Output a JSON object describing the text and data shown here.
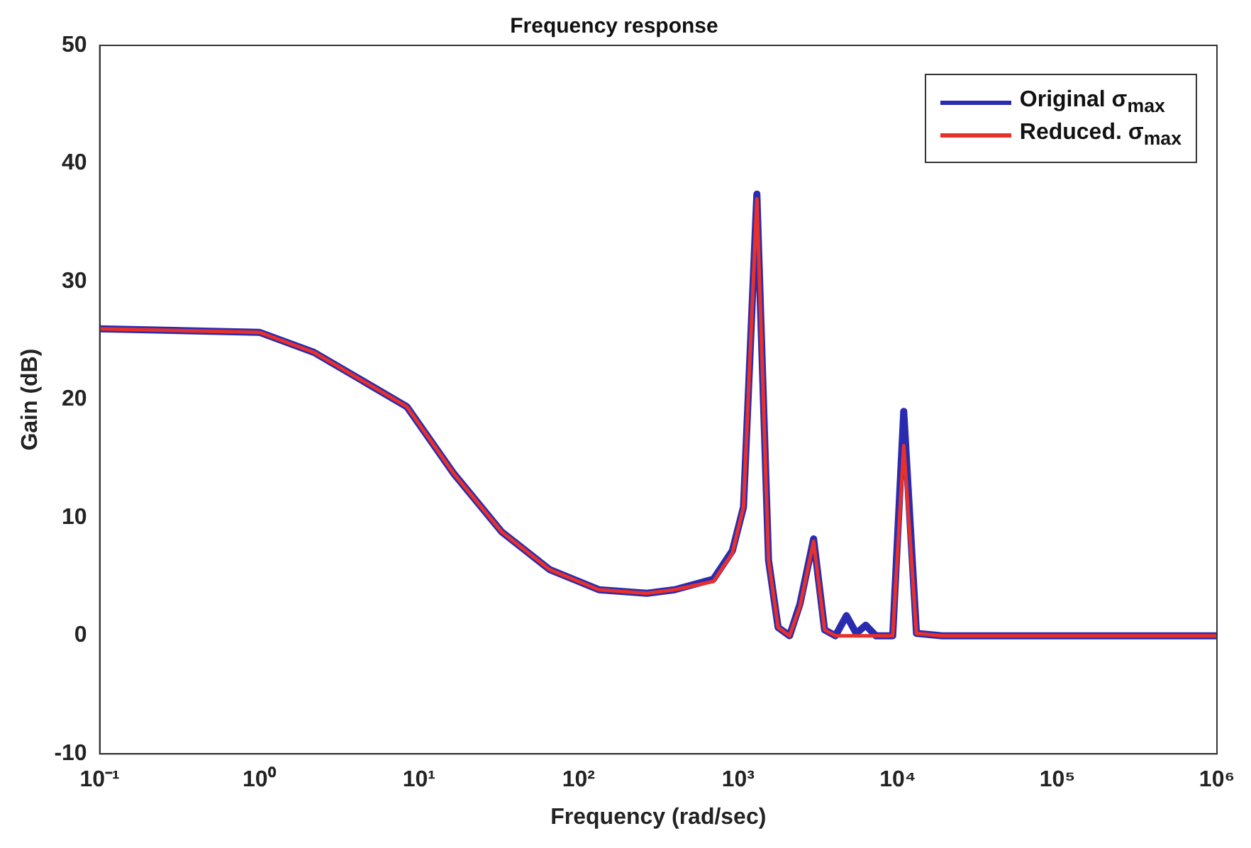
{
  "chart_data": {
    "type": "line",
    "title": "Frequency response",
    "xlabel": "Frequency (rad/sec)",
    "ylabel": "Gain (dB)",
    "x": [
      0.1,
      1,
      2.2,
      8.4,
      16.6,
      33,
      66,
      134,
      268,
      400,
      700,
      920,
      1080,
      1310,
      1550,
      1780,
      2100,
      2440,
      2970,
      3480,
      4070,
      4770,
      5500,
      6300,
      7300,
      9300,
      10900,
      13100,
      19000,
      100000,
      1000000
    ],
    "series": [
      {
        "name": "Original σ$_{max}$",
        "color": "#2b2bb0",
        "values": [
          26,
          25.7,
          24,
          19.4,
          13.7,
          8.8,
          5.6,
          3.9,
          3.6,
          3.9,
          4.8,
          7.2,
          10.9,
          37.4,
          6.4,
          0.7,
          0,
          2.7,
          8.2,
          0.5,
          0,
          1.7,
          0.2,
          0.9,
          0,
          0,
          19,
          0.2,
          0,
          0,
          0
        ]
      },
      {
        "name": "Reduced. σ$_{max}$",
        "color": "#e8312a",
        "values": [
          26,
          25.7,
          24,
          19.4,
          13.7,
          8.8,
          5.6,
          3.9,
          3.6,
          3.9,
          4.6,
          7,
          10.9,
          37,
          6.4,
          0.7,
          0,
          2.5,
          8,
          0.5,
          0,
          0,
          0,
          0,
          0,
          0,
          16.1,
          0.2,
          0,
          0,
          0
        ]
      }
    ],
    "log": "x",
    "xlim": [
      0.1,
      1000000
    ],
    "xticks": [
      {
        "value": 0.1,
        "label": "10⁻¹"
      },
      {
        "value": 1,
        "label": "10⁰"
      },
      {
        "value": 10,
        "label": "10¹"
      },
      {
        "value": 100,
        "label": "10²"
      },
      {
        "value": 1000,
        "label": "10³"
      },
      {
        "value": 10000,
        "label": "10⁴"
      },
      {
        "value": 100000,
        "label": "10⁵"
      },
      {
        "value": 1000000,
        "label": "10⁶"
      }
    ],
    "ylim": [
      -10,
      50
    ],
    "yticks": [
      -10,
      0,
      10,
      20,
      30,
      40,
      50
    ],
    "grid": false,
    "legend": "top right",
    "marker": "none",
    "line_style": "solid"
  }
}
